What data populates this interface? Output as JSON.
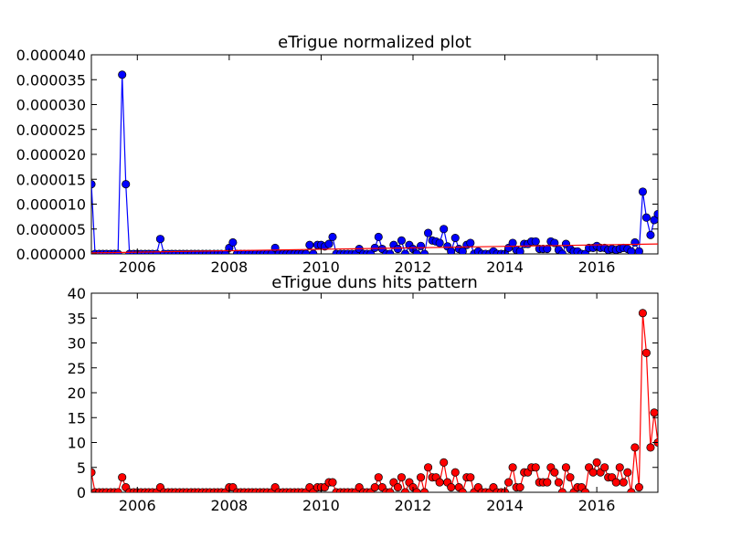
{
  "chart_data": [
    {
      "type": "line",
      "title": "eTrigue normalized plot",
      "xlabel": "",
      "ylabel": "",
      "xlim": [
        2005.0,
        2017.33
      ],
      "ylim": [
        0,
        4e-05
      ],
      "xticks": [
        2006,
        2008,
        2010,
        2012,
        2014,
        2016
      ],
      "xtick_labels": [
        "2006",
        "2008",
        "2010",
        "2012",
        "2014",
        "2016"
      ],
      "yticks": [
        0,
        5e-06,
        1e-05,
        1.5e-05,
        2e-05,
        2.5e-05,
        3e-05,
        3.5e-05,
        4e-05
      ],
      "ytick_labels": [
        "0.000000",
        "0.000005",
        "0.000010",
        "0.000015",
        "0.000020",
        "0.000025",
        "0.000030",
        "0.000035",
        "0.000040"
      ],
      "grid": false,
      "series": [
        {
          "color": "#0000ff",
          "marker": "circle",
          "x": [
            2005.0,
            2005.08,
            2005.17,
            2005.25,
            2005.33,
            2005.42,
            2005.5,
            2005.58,
            2005.67,
            2005.75,
            2005.83,
            2005.92,
            2006.0,
            2006.08,
            2006.17,
            2006.25,
            2006.33,
            2006.42,
            2006.5,
            2006.58,
            2006.67,
            2006.75,
            2006.83,
            2006.92,
            2007.0,
            2007.08,
            2007.17,
            2007.25,
            2007.33,
            2007.42,
            2007.5,
            2007.58,
            2007.67,
            2007.75,
            2007.83,
            2007.92,
            2008.0,
            2008.08,
            2008.17,
            2008.25,
            2008.33,
            2008.42,
            2008.5,
            2008.58,
            2008.67,
            2008.75,
            2008.83,
            2008.92,
            2009.0,
            2009.08,
            2009.17,
            2009.25,
            2009.33,
            2009.42,
            2009.5,
            2009.58,
            2009.67,
            2009.75,
            2009.83,
            2009.92,
            2010.0,
            2010.08,
            2010.17,
            2010.25,
            2010.33,
            2010.42,
            2010.5,
            2010.58,
            2010.67,
            2010.75,
            2010.83,
            2010.92,
            2011.0,
            2011.08,
            2011.17,
            2011.25,
            2011.33,
            2011.42,
            2011.5,
            2011.58,
            2011.67,
            2011.75,
            2011.83,
            2011.92,
            2012.0,
            2012.08,
            2012.17,
            2012.25,
            2012.33,
            2012.42,
            2012.5,
            2012.58,
            2012.67,
            2012.75,
            2012.83,
            2012.92,
            2013.0,
            2013.08,
            2013.17,
            2013.25,
            2013.33,
            2013.42,
            2013.5,
            2013.58,
            2013.67,
            2013.75,
            2013.83,
            2013.92,
            2014.0,
            2014.08,
            2014.17,
            2014.25,
            2014.33,
            2014.42,
            2014.5,
            2014.58,
            2014.67,
            2014.75,
            2014.83,
            2014.92,
            2015.0,
            2015.08,
            2015.17,
            2015.25,
            2015.33,
            2015.42,
            2015.5,
            2015.58,
            2015.67,
            2015.75,
            2015.83,
            2015.92,
            2016.0,
            2016.08,
            2016.17,
            2016.25,
            2016.33,
            2016.42,
            2016.5,
            2016.58,
            2016.67,
            2016.75,
            2016.83,
            2016.92,
            2017.0,
            2017.08,
            2017.17,
            2017.25,
            2017.33
          ],
          "y": [
            1.4e-05,
            0,
            0,
            0,
            0,
            0,
            0,
            0,
            3.6e-05,
            1.4e-05,
            0,
            0,
            0,
            0,
            0,
            0,
            0,
            0,
            3e-06,
            0,
            0,
            0,
            0,
            0,
            0,
            0,
            0,
            0,
            0,
            0,
            0,
            0,
            0,
            0,
            0,
            0,
            1.2e-06,
            2.3e-06,
            0,
            0,
            0,
            0,
            0,
            0,
            0,
            0,
            0,
            0,
            1.2e-06,
            0,
            0,
            0,
            0,
            0,
            0,
            0,
            0,
            1.8e-06,
            0,
            1.8e-06,
            1.8e-06,
            1.5e-06,
            2e-06,
            3.4e-06,
            0,
            0,
            0,
            0,
            0,
            0,
            1e-06,
            0,
            0,
            0,
            1.2e-06,
            3.4e-06,
            1e-06,
            0,
            0,
            1.8e-06,
            1e-06,
            2.7e-06,
            0,
            1.8e-06,
            1e-06,
            0,
            1.6e-06,
            0,
            4.2e-06,
            2.7e-06,
            2.5e-06,
            2.2e-06,
            5e-06,
            1.5e-06,
            5e-07,
            3.2e-06,
            1e-06,
            5e-07,
            1.8e-06,
            2.2e-06,
            0,
            5e-07,
            0,
            0,
            0,
            5e-07,
            0,
            0,
            0,
            1.2e-06,
            2.2e-06,
            8e-07,
            5e-07,
            2e-06,
            2e-06,
            2.5e-06,
            2.5e-06,
            1e-06,
            1e-06,
            1e-06,
            2.5e-06,
            2.2e-06,
            8e-07,
            0,
            2e-06,
            1e-06,
            5e-07,
            5e-07,
            0,
            0,
            1.2e-06,
            1.2e-06,
            1.6e-06,
            1.2e-06,
            1.2e-06,
            8e-07,
            1e-06,
            8e-07,
            1e-06,
            1.2e-06,
            1e-06,
            5e-07,
            2.3e-06,
            5e-07,
            1.25e-05,
            7.3e-06,
            3.8e-06,
            6.8e-06,
            8e-06
          ]
        },
        {
          "color": "#ff0000",
          "marker": "none",
          "x": [
            2005.0,
            2017.33
          ],
          "y": [
            2e-07,
            2e-06
          ]
        }
      ]
    },
    {
      "type": "line",
      "title": "eTrigue duns hits pattern",
      "xlabel": "",
      "ylabel": "",
      "xlim": [
        2005.0,
        2017.33
      ],
      "ylim": [
        0,
        40
      ],
      "xticks": [
        2006,
        2008,
        2010,
        2012,
        2014,
        2016
      ],
      "xtick_labels": [
        "2006",
        "2008",
        "2010",
        "2012",
        "2014",
        "2016"
      ],
      "yticks": [
        0,
        5,
        10,
        15,
        20,
        25,
        30,
        35,
        40
      ],
      "ytick_labels": [
        "0",
        "5",
        "10",
        "15",
        "20",
        "25",
        "30",
        "35",
        "40"
      ],
      "grid": false,
      "series": [
        {
          "color": "#ff0000",
          "marker": "circle",
          "x": [
            2005.0,
            2005.08,
            2005.17,
            2005.25,
            2005.33,
            2005.42,
            2005.5,
            2005.58,
            2005.67,
            2005.75,
            2005.83,
            2005.92,
            2006.0,
            2006.08,
            2006.17,
            2006.25,
            2006.33,
            2006.42,
            2006.5,
            2006.58,
            2006.67,
            2006.75,
            2006.83,
            2006.92,
            2007.0,
            2007.08,
            2007.17,
            2007.25,
            2007.33,
            2007.42,
            2007.5,
            2007.58,
            2007.67,
            2007.75,
            2007.83,
            2007.92,
            2008.0,
            2008.08,
            2008.17,
            2008.25,
            2008.33,
            2008.42,
            2008.5,
            2008.58,
            2008.67,
            2008.75,
            2008.83,
            2008.92,
            2009.0,
            2009.08,
            2009.17,
            2009.25,
            2009.33,
            2009.42,
            2009.5,
            2009.58,
            2009.67,
            2009.75,
            2009.83,
            2009.92,
            2010.0,
            2010.08,
            2010.17,
            2010.25,
            2010.33,
            2010.42,
            2010.5,
            2010.58,
            2010.67,
            2010.75,
            2010.83,
            2010.92,
            2011.0,
            2011.08,
            2011.17,
            2011.25,
            2011.33,
            2011.42,
            2011.5,
            2011.58,
            2011.67,
            2011.75,
            2011.83,
            2011.92,
            2012.0,
            2012.08,
            2012.17,
            2012.25,
            2012.33,
            2012.42,
            2012.5,
            2012.58,
            2012.67,
            2012.75,
            2012.83,
            2012.92,
            2013.0,
            2013.08,
            2013.17,
            2013.25,
            2013.33,
            2013.42,
            2013.5,
            2013.58,
            2013.67,
            2013.75,
            2013.83,
            2013.92,
            2014.0,
            2014.08,
            2014.17,
            2014.25,
            2014.33,
            2014.42,
            2014.5,
            2014.58,
            2014.67,
            2014.75,
            2014.83,
            2014.92,
            2015.0,
            2015.08,
            2015.17,
            2015.25,
            2015.33,
            2015.42,
            2015.5,
            2015.58,
            2015.67,
            2015.75,
            2015.83,
            2015.92,
            2016.0,
            2016.08,
            2016.17,
            2016.25,
            2016.33,
            2016.42,
            2016.5,
            2016.58,
            2016.67,
            2016.75,
            2016.83,
            2016.92,
            2017.0,
            2017.08,
            2017.17,
            2017.25,
            2017.33
          ],
          "y": [
            4,
            0,
            0,
            0,
            0,
            0,
            0,
            0,
            3,
            1,
            0,
            0,
            0,
            0,
            0,
            0,
            0,
            0,
            1,
            0,
            0,
            0,
            0,
            0,
            0,
            0,
            0,
            0,
            0,
            0,
            0,
            0,
            0,
            0,
            0,
            0,
            1,
            1,
            0,
            0,
            0,
            0,
            0,
            0,
            0,
            0,
            0,
            0,
            1,
            0,
            0,
            0,
            0,
            0,
            0,
            0,
            0,
            1,
            0,
            1,
            1,
            1,
            2,
            2,
            0,
            0,
            0,
            0,
            0,
            0,
            1,
            0,
            0,
            0,
            1,
            3,
            1,
            0,
            0,
            2,
            1,
            3,
            0,
            2,
            1,
            0,
            3,
            0,
            5,
            3,
            3,
            2,
            6,
            2,
            1,
            4,
            1,
            0,
            3,
            3,
            0,
            1,
            0,
            0,
            0,
            1,
            0,
            0,
            0,
            2,
            5,
            1,
            1,
            4,
            4,
            5,
            5,
            2,
            2,
            2,
            5,
            4,
            2,
            0,
            5,
            3,
            0,
            1,
            1,
            0,
            5,
            4,
            6,
            4,
            5,
            3,
            3,
            2,
            5,
            2,
            4,
            0,
            9,
            1,
            36,
            28,
            9,
            16,
            10
          ]
        }
      ]
    }
  ]
}
